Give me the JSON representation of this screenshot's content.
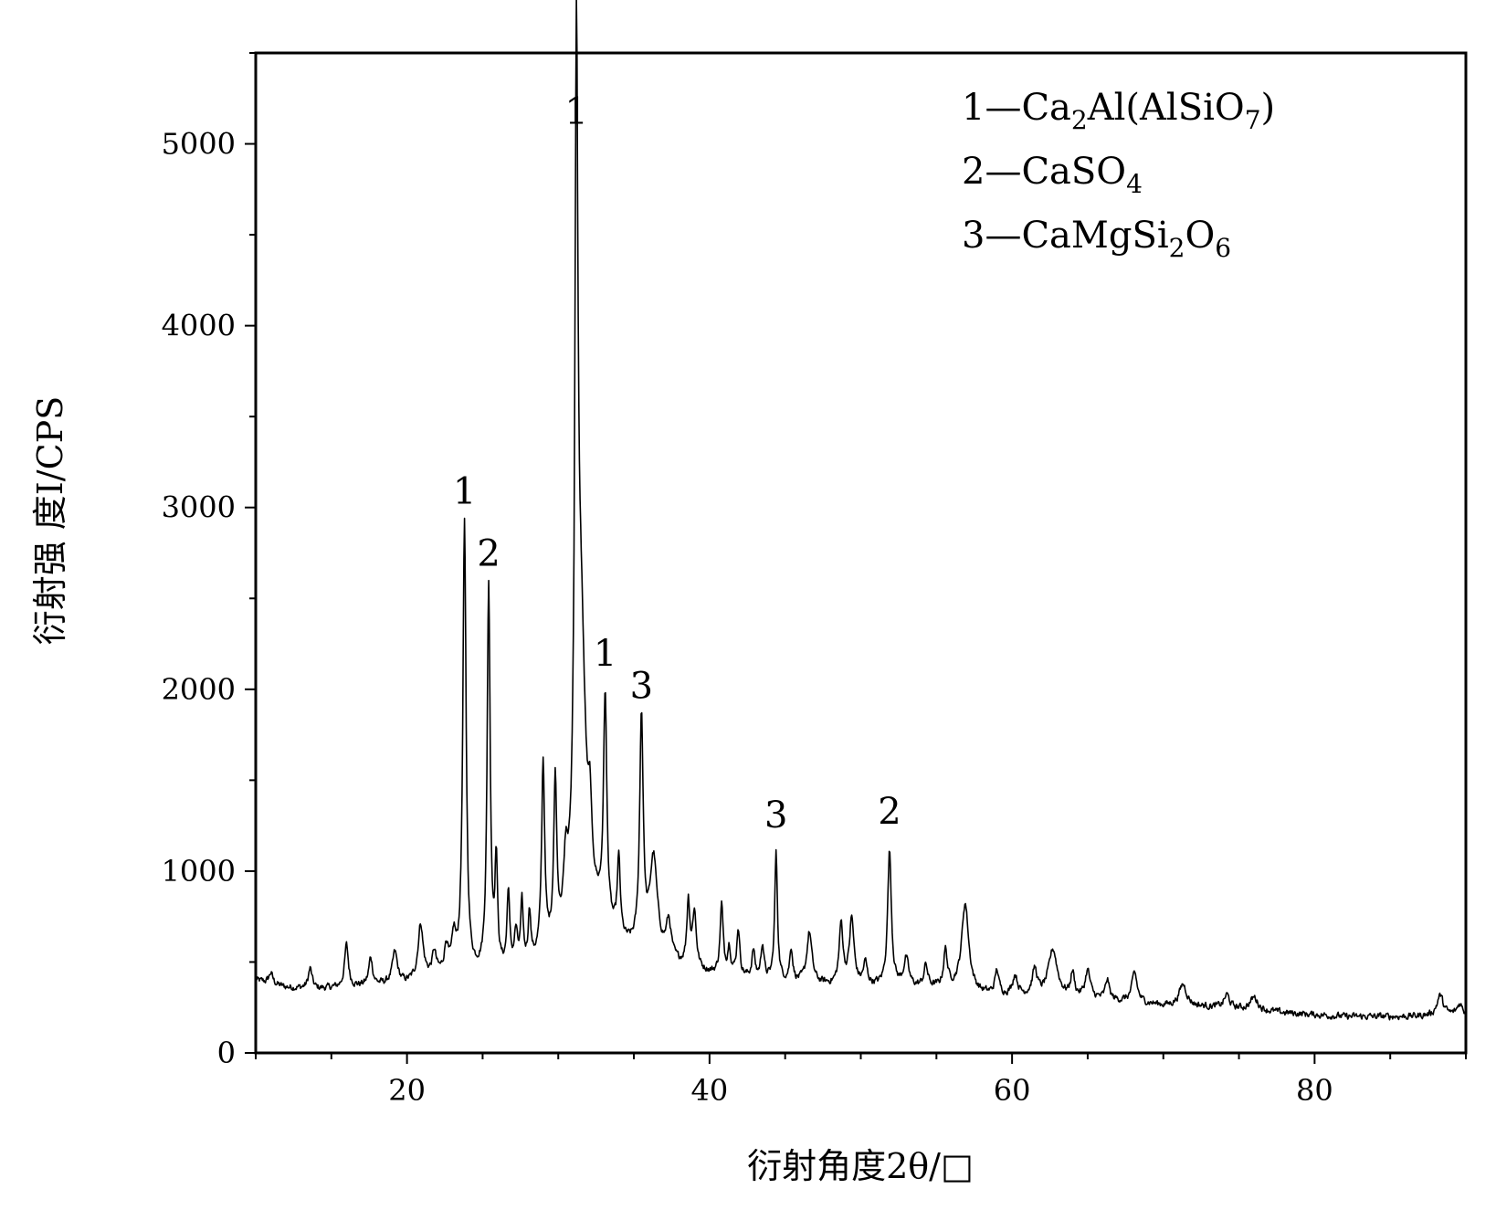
{
  "chart_data": {
    "type": "line",
    "title": "",
    "xlabel": "衍射角度2θ/□",
    "ylabel": "衍射强 度I/CPS",
    "xlim": [
      10,
      90
    ],
    "ylim": [
      0,
      5500
    ],
    "x_ticks": [
      20,
      40,
      60,
      80
    ],
    "y_ticks": [
      0,
      1000,
      2000,
      3000,
      4000,
      5000
    ],
    "x_tick_labels": [
      "20",
      "40",
      "60",
      "80"
    ],
    "y_tick_labels": [
      "0",
      "1000",
      "2000",
      "3000",
      "4000",
      "5000"
    ],
    "grid": false,
    "legend_position": "top-right",
    "legend": [
      {
        "key": "1",
        "text": "1—Ca₂Al(AlSiO₇)",
        "parts": [
          [
            "1—Ca",
            ""
          ],
          [
            "2",
            "sub"
          ],
          [
            "Al(AlSiO",
            ""
          ],
          [
            "7",
            "sub"
          ],
          [
            ")",
            ""
          ]
        ]
      },
      {
        "key": "2",
        "text": "2—CaSO₄",
        "parts": [
          [
            "2—CaSO",
            ""
          ],
          [
            "4",
            "sub"
          ]
        ]
      },
      {
        "key": "3",
        "text": "3—CaMgSi₂O₆",
        "parts": [
          [
            "3—CaMgSi",
            ""
          ],
          [
            "2",
            "sub"
          ],
          [
            "O",
            ""
          ],
          [
            "6",
            "sub"
          ]
        ]
      }
    ],
    "peak_annotations": [
      {
        "label": "1",
        "x": 23.8,
        "y": 2870
      },
      {
        "label": "2",
        "x": 25.4,
        "y": 2530
      },
      {
        "label": "1",
        "x": 31.2,
        "y": 4960
      },
      {
        "label": "1",
        "x": 33.1,
        "y": 1980
      },
      {
        "label": "3",
        "x": 35.5,
        "y": 1800
      },
      {
        "label": "3",
        "x": 44.4,
        "y": 1090
      },
      {
        "label": "2",
        "x": 51.9,
        "y": 1110
      }
    ],
    "baseline": [
      [
        10,
        400
      ],
      [
        12,
        360
      ],
      [
        14,
        350
      ],
      [
        16,
        360
      ],
      [
        18,
        370
      ],
      [
        20,
        380
      ],
      [
        22,
        420
      ],
      [
        25,
        420
      ],
      [
        28,
        460
      ],
      [
        30,
        550
      ],
      [
        32,
        760
      ],
      [
        34,
        580
      ],
      [
        36,
        520
      ],
      [
        38,
        470
      ],
      [
        40,
        430
      ],
      [
        44,
        390
      ],
      [
        48,
        370
      ],
      [
        52,
        360
      ],
      [
        56,
        350
      ],
      [
        58,
        320
      ],
      [
        60,
        310
      ],
      [
        64,
        300
      ],
      [
        68,
        280
      ],
      [
        70,
        260
      ],
      [
        74,
        250
      ],
      [
        78,
        220
      ],
      [
        82,
        200
      ],
      [
        86,
        200
      ],
      [
        90,
        210
      ]
    ],
    "peaks": [
      [
        11.0,
        60,
        0.15
      ],
      [
        13.6,
        110,
        0.15
      ],
      [
        16.0,
        230,
        0.15
      ],
      [
        17.6,
        150,
        0.15
      ],
      [
        19.2,
        170,
        0.2
      ],
      [
        20.9,
        300,
        0.2
      ],
      [
        21.8,
        120,
        0.15
      ],
      [
        22.6,
        150,
        0.15
      ],
      [
        23.1,
        180,
        0.15
      ],
      [
        23.8,
        2470,
        0.13
      ],
      [
        25.4,
        2120,
        0.12
      ],
      [
        25.9,
        580,
        0.1
      ],
      [
        26.7,
        420,
        0.1
      ],
      [
        27.2,
        180,
        0.12
      ],
      [
        27.6,
        330,
        0.1
      ],
      [
        28.1,
        280,
        0.1
      ],
      [
        29.0,
        1050,
        0.12
      ],
      [
        29.8,
        880,
        0.12
      ],
      [
        30.5,
        300,
        0.15
      ],
      [
        31.2,
        4240,
        0.12
      ],
      [
        31.5,
        1500,
        0.35
      ],
      [
        32.1,
        330,
        0.12
      ],
      [
        33.1,
        1240,
        0.13
      ],
      [
        34.0,
        430,
        0.12
      ],
      [
        35.5,
        1270,
        0.14
      ],
      [
        36.3,
        530,
        0.3
      ],
      [
        37.3,
        200,
        0.2
      ],
      [
        38.6,
        350,
        0.12
      ],
      [
        39.0,
        300,
        0.15
      ],
      [
        40.8,
        380,
        0.12
      ],
      [
        41.3,
        150,
        0.12
      ],
      [
        41.9,
        260,
        0.12
      ],
      [
        42.9,
        150,
        0.12
      ],
      [
        43.5,
        190,
        0.12
      ],
      [
        44.4,
        700,
        0.11
      ],
      [
        45.4,
        180,
        0.12
      ],
      [
        46.6,
        280,
        0.2
      ],
      [
        48.7,
        330,
        0.15
      ],
      [
        49.4,
        360,
        0.18
      ],
      [
        50.3,
        120,
        0.15
      ],
      [
        51.9,
        740,
        0.15
      ],
      [
        53.0,
        150,
        0.2
      ],
      [
        54.3,
        120,
        0.15
      ],
      [
        55.6,
        200,
        0.15
      ],
      [
        56.9,
        480,
        0.28
      ],
      [
        59.0,
        130,
        0.15
      ],
      [
        60.2,
        110,
        0.2
      ],
      [
        61.5,
        140,
        0.2
      ],
      [
        62.7,
        260,
        0.35
      ],
      [
        64.0,
        130,
        0.15
      ],
      [
        65.0,
        150,
        0.2
      ],
      [
        66.3,
        110,
        0.15
      ],
      [
        68.1,
        160,
        0.2
      ],
      [
        71.3,
        120,
        0.3
      ],
      [
        74.2,
        70,
        0.2
      ],
      [
        76.0,
        70,
        0.3
      ],
      [
        88.3,
        110,
        0.25
      ],
      [
        89.6,
        60,
        0.2
      ]
    ]
  }
}
